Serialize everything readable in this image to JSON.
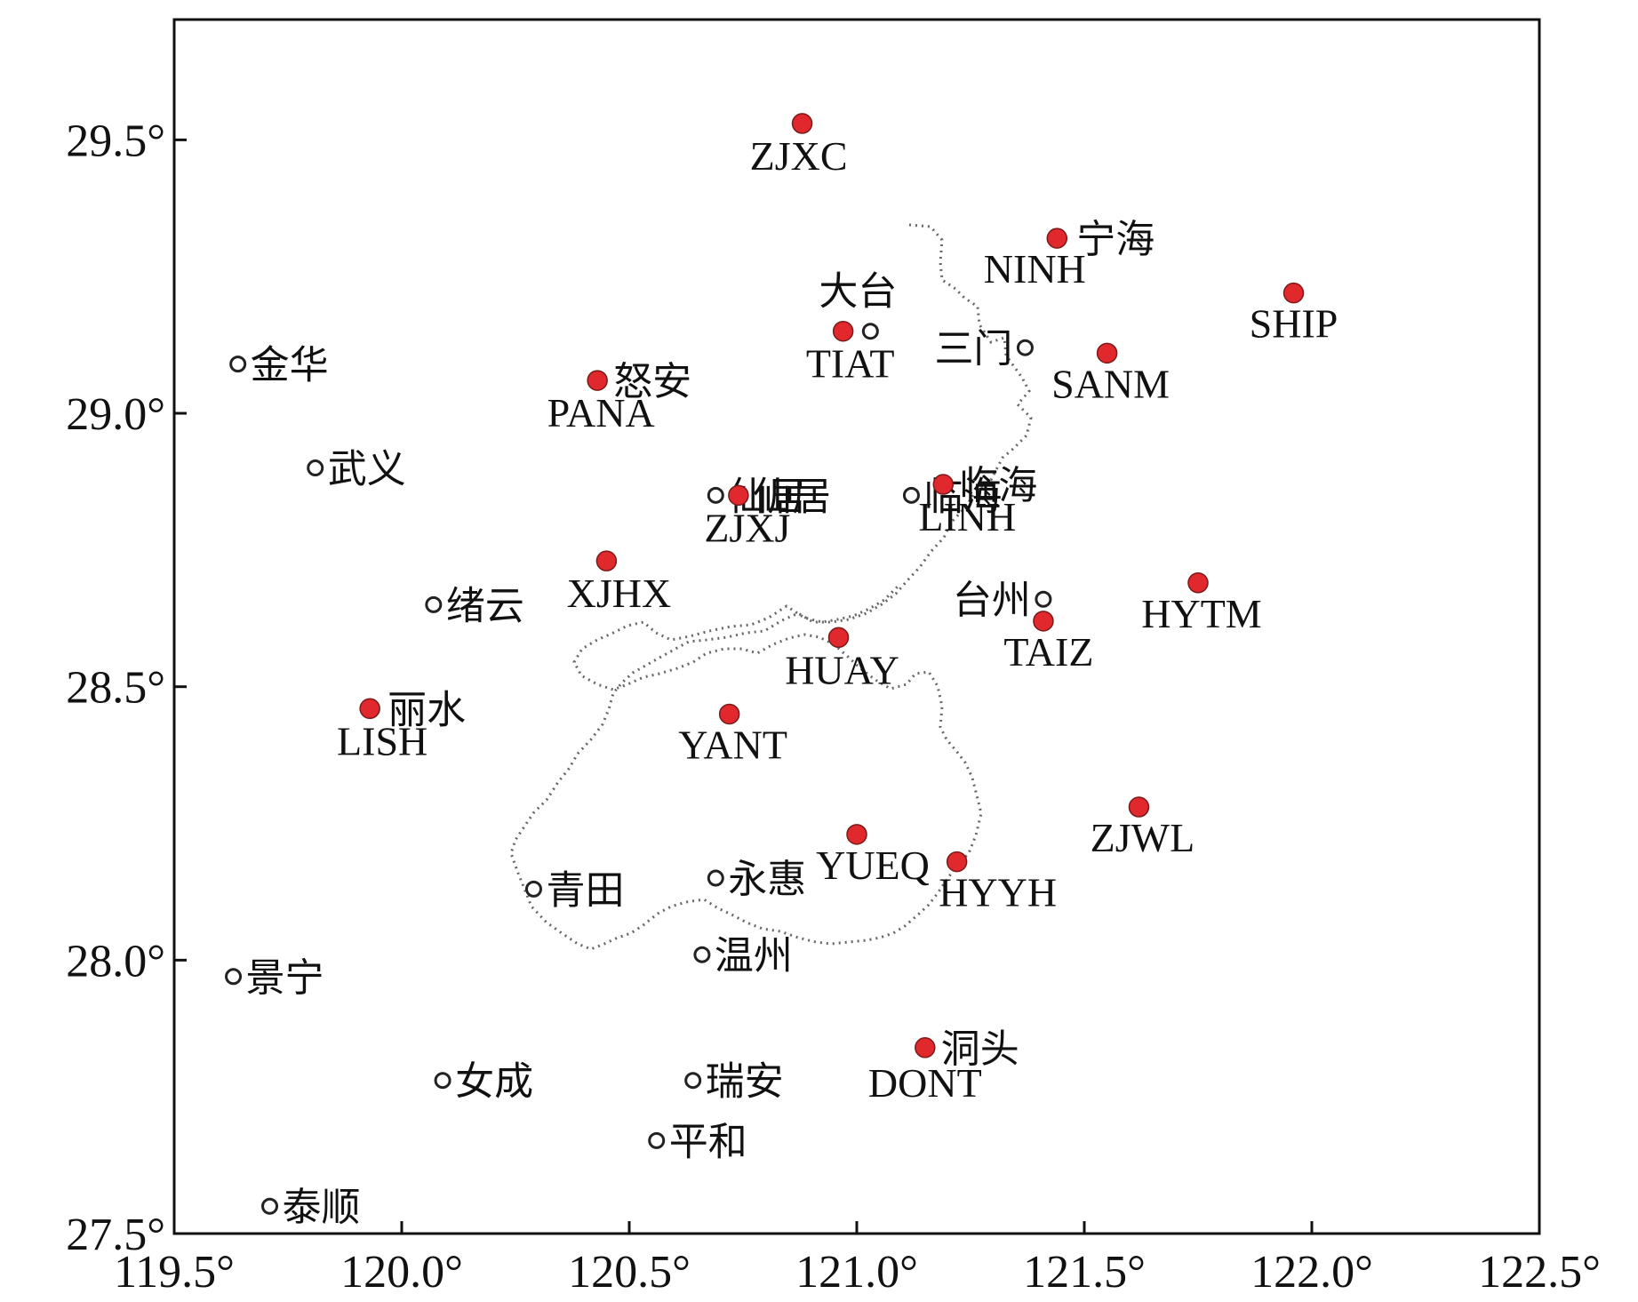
{
  "map": {
    "title": "",
    "x_axis": {
      "min": 119.5,
      "max": 122.5,
      "ticks": [
        "119.5°",
        "120.0°",
        "120.5°",
        "121.0°",
        "121.5°",
        "122.0°",
        "122.5°"
      ],
      "tick_values": [
        119.5,
        120.0,
        120.5,
        121.0,
        121.5,
        122.0,
        122.5
      ]
    },
    "y_axis": {
      "min": 27.5,
      "max": 29.72,
      "ticks": [
        "27.5°",
        "28.0°",
        "28.5°",
        "29.0°",
        "29.5°"
      ],
      "tick_values": [
        27.5,
        28.0,
        28.5,
        29.0,
        29.5
      ]
    },
    "colors": {
      "station": "#e1282c",
      "city_marker": "#222222",
      "frame": "#111111",
      "boundary": "#666666"
    },
    "stations": [
      {
        "code": "ZJXC",
        "lon": 120.88,
        "lat": 29.53
      },
      {
        "code": "NINH",
        "name": "宁海",
        "lon": 121.44,
        "lat": 29.32
      },
      {
        "code": "SHIP",
        "lon": 121.96,
        "lat": 29.22
      },
      {
        "code": "TIAT",
        "lon": 120.97,
        "lat": 29.15
      },
      {
        "code": "SANM",
        "lon": 121.55,
        "lat": 29.11
      },
      {
        "code": "PANA",
        "name": "怒安",
        "lon": 120.43,
        "lat": 29.06
      },
      {
        "code": "LINH",
        "name": "临海",
        "lon": 121.19,
        "lat": 28.87
      },
      {
        "code": "ZJXJ",
        "name": "仙居",
        "lon": 120.74,
        "lat": 28.85
      },
      {
        "code": "XJHX",
        "lon": 120.45,
        "lat": 28.73
      },
      {
        "code": "HYTM",
        "lon": 121.75,
        "lat": 28.69
      },
      {
        "code": "TAIZ",
        "lon": 121.41,
        "lat": 28.62
      },
      {
        "code": "HUAY",
        "lon": 120.96,
        "lat": 28.59
      },
      {
        "code": "LISH",
        "name": "丽水",
        "lon": 119.93,
        "lat": 28.46
      },
      {
        "code": "YANT",
        "lon": 120.72,
        "lat": 28.45
      },
      {
        "code": "ZJWL",
        "lon": 121.62,
        "lat": 28.28
      },
      {
        "code": "YUEQ",
        "lon": 121.0,
        "lat": 28.23
      },
      {
        "code": "HYYH",
        "lon": 121.22,
        "lat": 28.18
      },
      {
        "code": "DONT",
        "name": "洞头",
        "lon": 121.15,
        "lat": 27.84
      }
    ],
    "cities": [
      {
        "name": "大台",
        "lon": 121.03,
        "lat": 29.15
      },
      {
        "name": "三门",
        "lon": 121.37,
        "lat": 29.12
      },
      {
        "name": "金华",
        "lon": 119.64,
        "lat": 29.09
      },
      {
        "name": "武义",
        "lon": 119.81,
        "lat": 28.9
      },
      {
        "name": "仙居",
        "lon": 120.69,
        "lat": 28.85
      },
      {
        "name": "临海",
        "lon": 121.12,
        "lat": 28.85
      },
      {
        "name": "绪云",
        "lon": 120.07,
        "lat": 28.65
      },
      {
        "name": "台州",
        "lon": 121.41,
        "lat": 28.66
      },
      {
        "name": "青田",
        "lon": 120.29,
        "lat": 28.13
      },
      {
        "name": "永惠",
        "lon": 120.69,
        "lat": 28.15
      },
      {
        "name": "温州",
        "lon": 120.66,
        "lat": 28.01
      },
      {
        "name": "景宁",
        "lon": 119.63,
        "lat": 27.97
      },
      {
        "name": "女成",
        "lon": 120.09,
        "lat": 27.78
      },
      {
        "name": "瑞安",
        "lon": 120.64,
        "lat": 27.78
      },
      {
        "name": "平和",
        "lon": 120.56,
        "lat": 27.67
      },
      {
        "name": "泰顺",
        "lon": 119.71,
        "lat": 27.55
      }
    ]
  }
}
